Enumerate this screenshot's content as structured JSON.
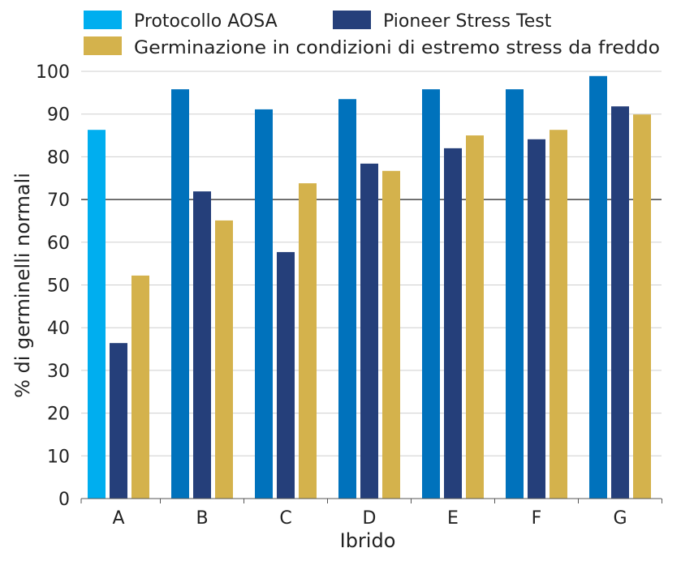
{
  "chart_data": {
    "type": "bar",
    "title": "",
    "xlabel": "Ibrido",
    "ylabel": "% di germinelli normali",
    "ylim": [
      0,
      100
    ],
    "yticks": [
      0,
      10,
      20,
      30,
      40,
      50,
      60,
      70,
      80,
      90,
      100
    ],
    "grid": true,
    "highlight_gridline": 70,
    "legend_position": "top",
    "categories": [
      "A",
      "B",
      "C",
      "D",
      "E",
      "F",
      "G"
    ],
    "series": [
      {
        "name": "Protocollo AOSA",
        "color": "#0072bc",
        "first_bar_color": "#00aeef",
        "values": [
          86.3,
          95.8,
          91.1,
          93.5,
          95.8,
          95.8,
          98.9
        ]
      },
      {
        "name": "Pioneer Stress Test",
        "color": "#253f7a",
        "values": [
          36.4,
          71.9,
          57.7,
          78.4,
          82.0,
          84.1,
          91.8
        ]
      },
      {
        "name": "Germinazione in condizioni di estremo stress da freddo",
        "color": "#d4b24c",
        "values": [
          52.2,
          65.1,
          73.8,
          76.7,
          85.0,
          86.3,
          89.9
        ]
      }
    ]
  }
}
